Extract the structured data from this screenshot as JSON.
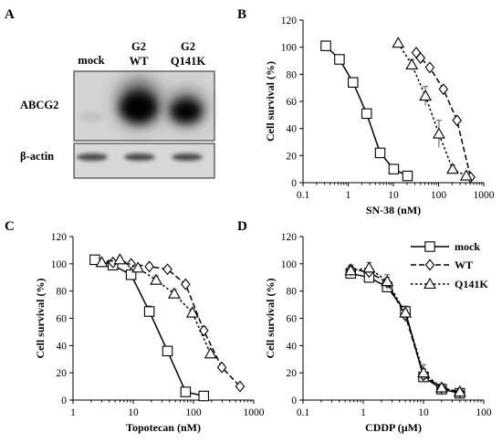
{
  "panels": {
    "A": {
      "letter": "A",
      "lanes": [
        {
          "line1": "",
          "line2": "mock"
        },
        {
          "line1": "G2",
          "line2": "WT"
        },
        {
          "line1": "G2",
          "line2": "Q141K"
        }
      ],
      "rows": [
        "ABCG2",
        "β-actin"
      ],
      "band_intensity": {
        "ABCG2": [
          0.05,
          1.0,
          0.8
        ],
        "β-actin": [
          0.6,
          0.6,
          0.6
        ]
      }
    },
    "B": {
      "letter": "B"
    },
    "C": {
      "letter": "C"
    },
    "D": {
      "letter": "D"
    }
  },
  "legend": {
    "entries": [
      {
        "name": "mock",
        "marker": "square",
        "dash": "solid"
      },
      {
        "name": "WT",
        "marker": "diamond",
        "dash": "dash"
      },
      {
        "name": "Q141K",
        "marker": "triangle",
        "dash": "dot"
      }
    ]
  },
  "chart_data": [
    {
      "panel": "B",
      "type": "line",
      "xlabel": "SN-38 (nM)",
      "ylabel": "Cell survival (%)",
      "xscale": "log",
      "xlim": [
        0.1,
        1000
      ],
      "xticks": [
        0.1,
        1,
        10,
        100,
        1000
      ],
      "xtick_labels": [
        "0.1",
        "1",
        "10",
        "100",
        "1000"
      ],
      "ylim": [
        0,
        120
      ],
      "yticks": [
        0,
        20,
        40,
        60,
        80,
        100,
        120
      ],
      "series": [
        {
          "name": "mock",
          "x": [
            0.32,
            0.64,
            1.28,
            2.56,
            5.1,
            10.2,
            20.5
          ],
          "y": [
            101,
            91,
            74,
            51,
            22,
            10,
            5
          ],
          "err": [
            1,
            2,
            2,
            2,
            2,
            3,
            1
          ]
        },
        {
          "name": "WT",
          "x": [
            32,
            40,
            64,
            128,
            256,
            512
          ],
          "y": [
            96,
            92,
            85,
            69,
            46,
            4
          ],
          "err": [
            1,
            2,
            2,
            2,
            2,
            2
          ]
        },
        {
          "name": "Q141K",
          "x": [
            12.8,
            25.6,
            51.2,
            102,
            205,
            410
          ],
          "y": [
            103,
            87,
            64,
            36,
            10,
            5
          ],
          "err": [
            1,
            4,
            7,
            10,
            3,
            1
          ]
        }
      ]
    },
    {
      "panel": "C",
      "type": "line",
      "xlabel": "Topotecan (nM)",
      "ylabel": "Cell survival (%)",
      "xscale": "log",
      "xlim": [
        1,
        1000
      ],
      "xticks": [
        1,
        10,
        100,
        1000
      ],
      "xtick_labels": [
        "1",
        "10",
        "100",
        "1000"
      ],
      "ylim": [
        0,
        120
      ],
      "yticks": [
        0,
        20,
        40,
        60,
        80,
        100,
        120
      ],
      "series": [
        {
          "name": "mock",
          "x": [
            2.3,
            4.6,
            9.2,
            18.5,
            37,
            74,
            148
          ],
          "y": [
            103,
            99,
            92,
            65,
            36,
            6,
            3
          ],
          "err": [
            1,
            2,
            2,
            4,
            3,
            1,
            1
          ]
        },
        {
          "name": "WT",
          "x": [
            4.6,
            9.2,
            18.5,
            37,
            74,
            148,
            296,
            592
          ],
          "y": [
            101,
            100,
            98,
            96,
            85,
            51,
            24,
            10
          ],
          "err": [
            1,
            1,
            2,
            2,
            2,
            3,
            2,
            2
          ]
        },
        {
          "name": "Q141K",
          "x": [
            3,
            6,
            12,
            24,
            48,
            96,
            192
          ],
          "y": [
            101,
            103,
            97,
            88,
            78,
            64,
            34
          ],
          "err": [
            1,
            2,
            2,
            3,
            3,
            3,
            3
          ]
        }
      ]
    },
    {
      "panel": "D",
      "type": "line",
      "xlabel": "CDDP (µM)",
      "ylabel": "Cell survival (%)",
      "xscale": "log",
      "xlim": [
        0.1,
        100
      ],
      "xticks": [
        0.1,
        1,
        10,
        100
      ],
      "xtick_labels": [
        "0.1",
        "1",
        "10",
        "100"
      ],
      "ylim": [
        0,
        120
      ],
      "yticks": [
        0,
        20,
        40,
        60,
        80,
        100,
        120
      ],
      "series": [
        {
          "name": "mock",
          "x": [
            0.62,
            1.25,
            2.5,
            5,
            10,
            20,
            40
          ],
          "y": [
            93,
            90,
            83,
            65,
            17,
            8,
            5
          ],
          "err": [
            3,
            4,
            4,
            4,
            4,
            2,
            2
          ]
        },
        {
          "name": "WT",
          "x": [
            0.62,
            1.25,
            2.5,
            5,
            10,
            20,
            40
          ],
          "y": [
            96,
            94,
            86,
            62,
            18,
            9,
            6
          ],
          "err": [
            3,
            4,
            4,
            4,
            5,
            2,
            2
          ]
        },
        {
          "name": "Q141K",
          "x": [
            0.62,
            1.25,
            2.5,
            5,
            10,
            20,
            40
          ],
          "y": [
            95,
            97,
            87,
            64,
            20,
            9,
            6
          ],
          "err": [
            4,
            4,
            5,
            5,
            6,
            3,
            2
          ]
        }
      ]
    }
  ]
}
